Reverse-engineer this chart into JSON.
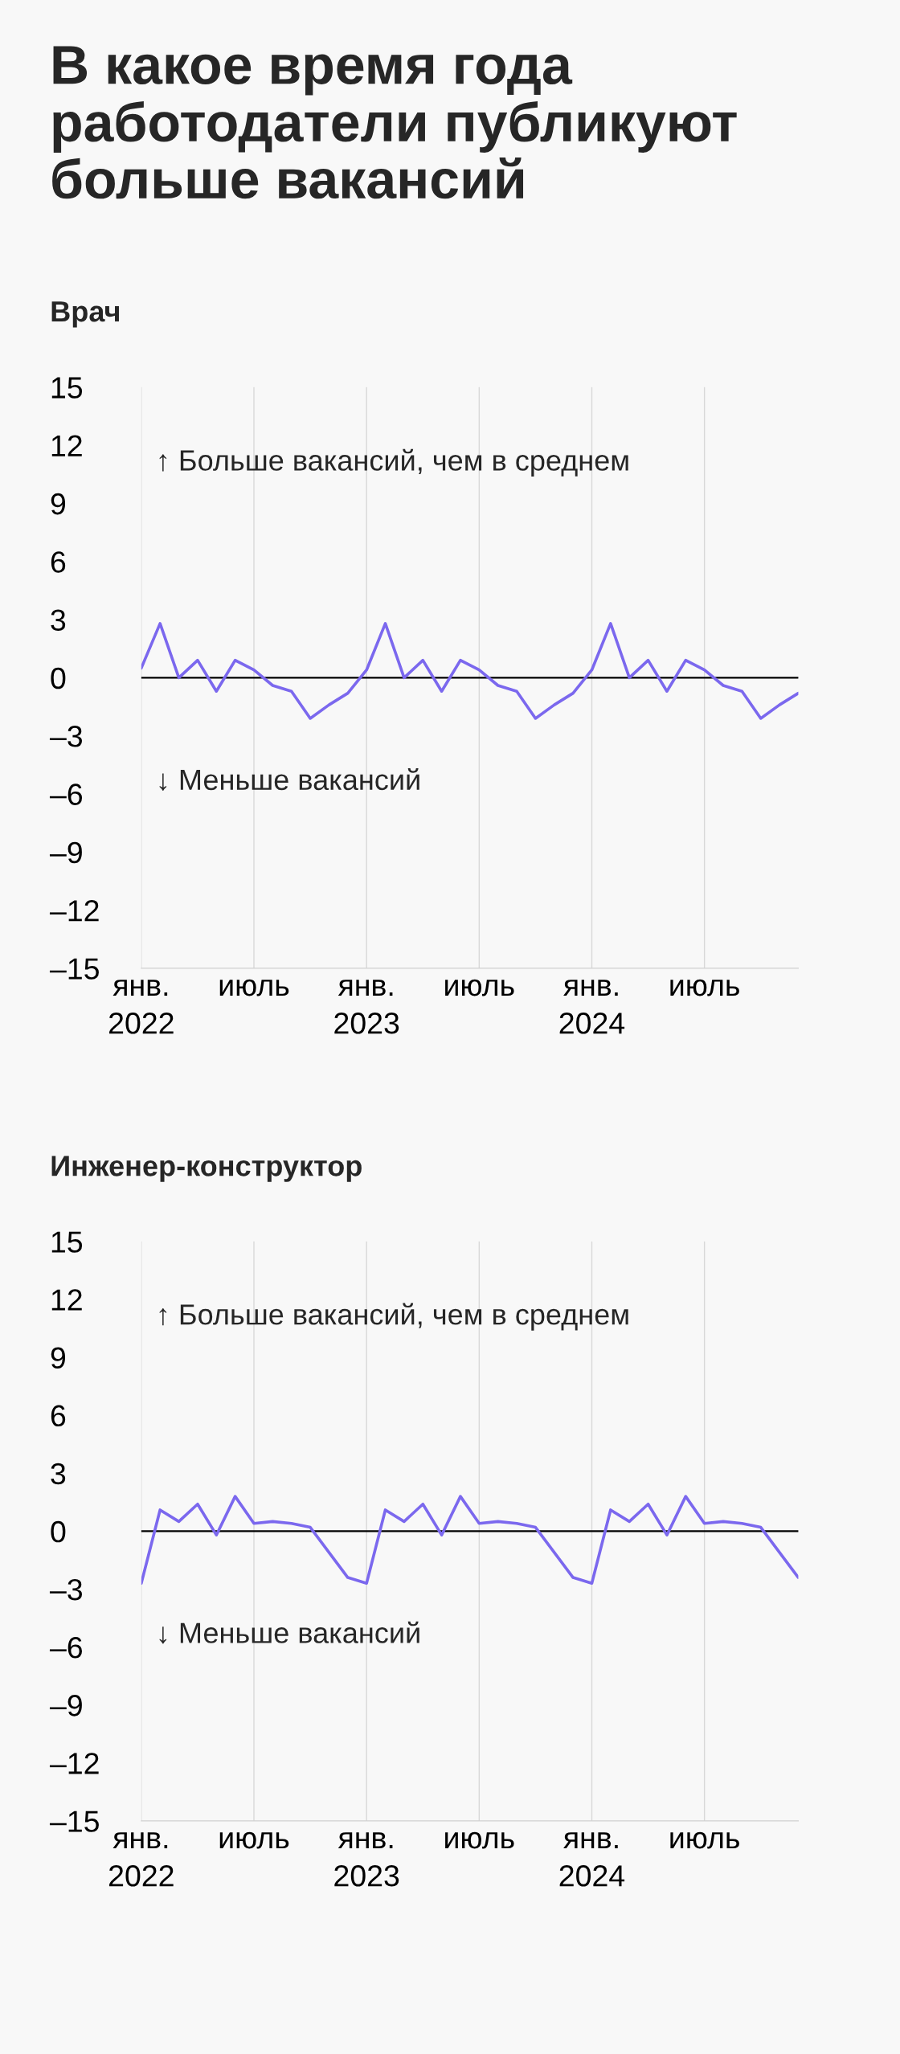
{
  "chart_data": [
    {
      "type": "line",
      "title": "В какое время года работодатели публикуют больше вакансий",
      "subtitle": "Врач",
      "categories": [
        "янв.\n2022",
        null,
        null,
        null,
        null,
        null,
        "июль",
        null,
        null,
        null,
        null,
        null,
        "янв.\n2023",
        null,
        null,
        null,
        null,
        null,
        "июль",
        null,
        null,
        null,
        null,
        null,
        "янв.\n2024",
        null,
        null,
        null,
        null,
        null,
        "июль",
        null,
        null,
        null,
        null,
        null
      ],
      "series": [
        {
          "color": "#7b68ee",
          "values": [
            0.5,
            2.8,
            0,
            0.9,
            -0.7,
            0.9,
            0.4,
            -0.4,
            -0.7,
            -2.1,
            -1.4,
            -0.8,
            0.4,
            2.8,
            0,
            0.9,
            -0.7,
            0.9,
            0.4,
            -0.4,
            -0.7,
            -2.1,
            -1.4,
            -0.8,
            0.4,
            2.8,
            0,
            0.9,
            -0.7,
            0.9,
            0.4,
            -0.4,
            -0.7,
            -2.1,
            -1.4,
            -0.8
          ]
        }
      ],
      "ylim": [
        -15,
        15
      ],
      "yticks": [
        {
          "value": 15,
          "label": "15"
        },
        {
          "value": 12,
          "label": "12"
        },
        {
          "value": 9,
          "label": "9"
        },
        {
          "value": 6,
          "label": "6"
        },
        {
          "value": 3,
          "label": "3"
        },
        {
          "value": 0,
          "label": "0"
        },
        {
          "value": -3,
          "label": "–3"
        },
        {
          "value": -6,
          "label": "–6"
        },
        {
          "value": -9,
          "label": "–9"
        },
        {
          "value": -12,
          "label": "–12"
        },
        {
          "value": -15,
          "label": "–15"
        }
      ],
      "ref_lines": [
        {
          "axis": "y",
          "value": 0,
          "color": "#000000"
        }
      ],
      "annotations": [
        "↑ Больше вакансий, чем в среднем",
        "↓ Меньше вакансий"
      ],
      "grid": "x",
      "legend": false,
      "marker": "none",
      "line_style": "solid"
    },
    {
      "type": "line",
      "subtitle": "Инженер-конструктор",
      "categories": [
        "янв.\n2022",
        null,
        null,
        null,
        null,
        null,
        "июль",
        null,
        null,
        null,
        null,
        null,
        "янв.\n2023",
        null,
        null,
        null,
        null,
        null,
        "июль",
        null,
        null,
        null,
        null,
        null,
        "янв.\n2024",
        null,
        null,
        null,
        null,
        null,
        "июль",
        null,
        null,
        null,
        null,
        null
      ],
      "series": [
        {
          "color": "#7b68ee",
          "values": [
            -2.7,
            1.1,
            0.5,
            1.4,
            -0.2,
            1.8,
            0.4,
            0.5,
            0.4,
            0.2,
            -1.1,
            -2.4,
            -2.7,
            1.1,
            0.5,
            1.4,
            -0.2,
            1.8,
            0.4,
            0.5,
            0.4,
            0.2,
            -1.1,
            -2.4,
            -2.7,
            1.1,
            0.5,
            1.4,
            -0.2,
            1.8,
            0.4,
            0.5,
            0.4,
            0.2,
            -1.1,
            -2.4
          ]
        }
      ],
      "ylim": [
        -15,
        15
      ],
      "yticks": [
        {
          "value": 15,
          "label": "15"
        },
        {
          "value": 12,
          "label": "12"
        },
        {
          "value": 9,
          "label": "9"
        },
        {
          "value": 6,
          "label": "6"
        },
        {
          "value": 3,
          "label": "3"
        },
        {
          "value": 0,
          "label": "0"
        },
        {
          "value": -3,
          "label": "–3"
        },
        {
          "value": -6,
          "label": "–6"
        },
        {
          "value": -9,
          "label": "–9"
        },
        {
          "value": -12,
          "label": "–12"
        },
        {
          "value": -15,
          "label": "–15"
        }
      ],
      "ref_lines": [
        {
          "axis": "y",
          "value": 0,
          "color": "#000000"
        }
      ],
      "annotations": [
        "↑ Больше вакансий, чем в среднем",
        "↓ Меньше вакансий"
      ],
      "grid": "x",
      "legend": false,
      "marker": "none",
      "line_style": "solid"
    }
  ]
}
